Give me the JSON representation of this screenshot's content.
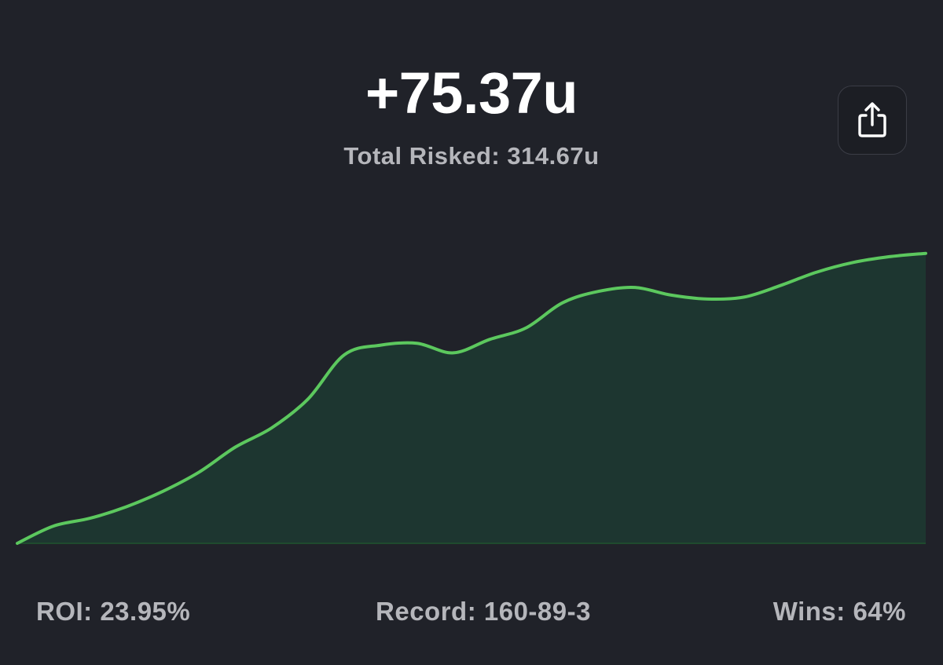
{
  "summary": {
    "profit": "+75.37u",
    "total_risked": "Total Risked: 314.67u"
  },
  "share_button": {
    "icon": "share-icon"
  },
  "stats": {
    "roi": "ROI: 23.95%",
    "record": "Record: 160-89-3",
    "wins": "Wins: 64%"
  },
  "colors": {
    "background": "#202229",
    "line": "#5cc85e",
    "fill": "#1d3630",
    "baseline": "#1f4a2e",
    "primary_text": "#ffffff",
    "secondary_text": "#b5b6bb"
  },
  "chart_data": {
    "type": "area",
    "title": "",
    "xlabel": "",
    "ylabel": "",
    "grid": false,
    "legend": "none",
    "ylim": [
      0,
      80
    ],
    "x": [
      0,
      4,
      8,
      12,
      16,
      20,
      24,
      28,
      32,
      36,
      40,
      44,
      48,
      52,
      56,
      60,
      64,
      68,
      72,
      76,
      80,
      84,
      88,
      92,
      96,
      100
    ],
    "series": [
      {
        "values": [
          0,
          4.5,
          6.5,
          9.5,
          13.5,
          18.5,
          25,
          30,
          37.5,
          49,
          51.5,
          52,
          49.5,
          53,
          56,
          62.5,
          65.5,
          66.5,
          64.5,
          63.5,
          64,
          67,
          70.5,
          73,
          74.5,
          75.37
        ]
      }
    ]
  }
}
